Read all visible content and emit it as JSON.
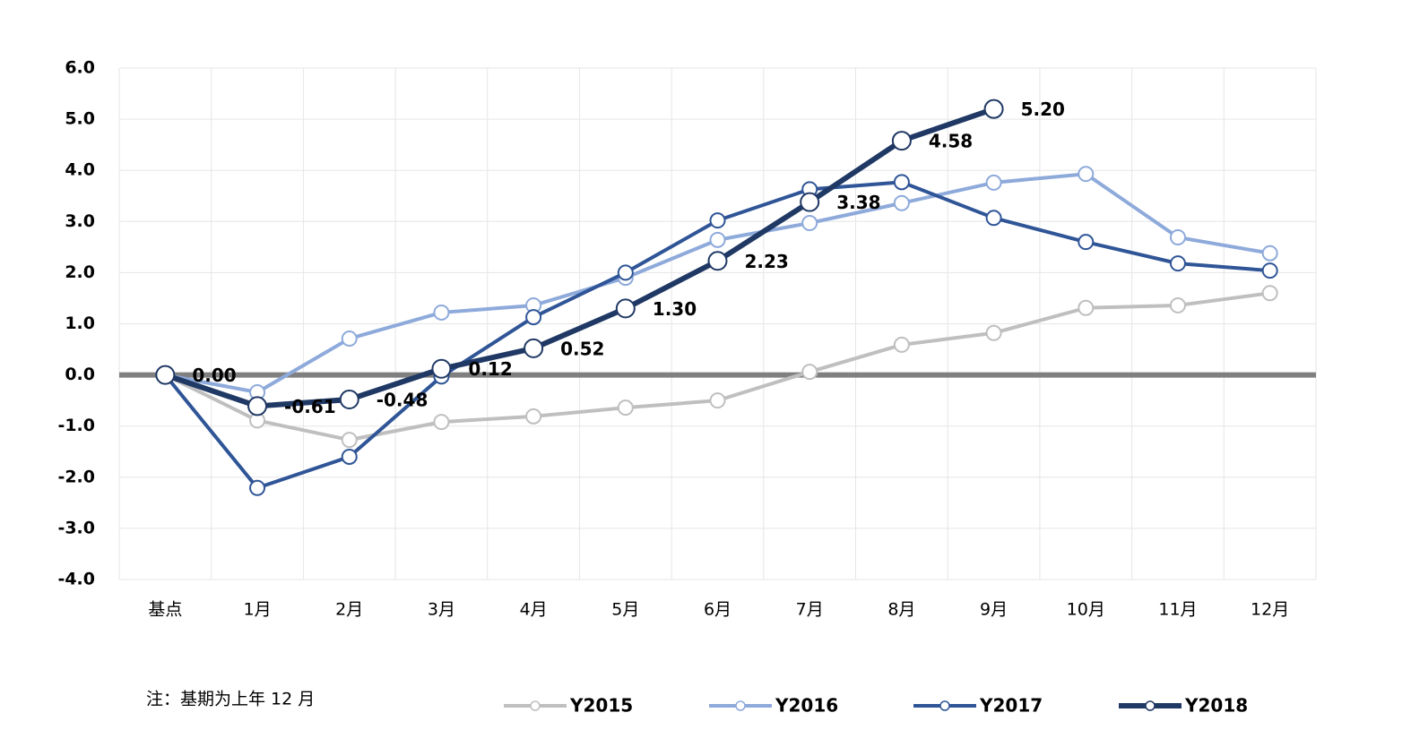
{
  "chart_data": {
    "type": "line",
    "note": "注：基期为上年 12 月",
    "categories": [
      "基点",
      "1月",
      "2月",
      "3月",
      "4月",
      "5月",
      "6月",
      "7月",
      "8月",
      "9月",
      "10月",
      "11月",
      "12月"
    ],
    "series": [
      {
        "name": "Y2015",
        "color": "#bfbfbf",
        "values": [
          0,
          -0.89,
          -1.27,
          -0.92,
          -0.81,
          -0.64,
          -0.5,
          0.06,
          0.59,
          0.82,
          1.31,
          1.36,
          1.6
        ]
      },
      {
        "name": "Y2016",
        "color": "#8eaadb",
        "values": [
          0,
          -0.34,
          0.71,
          1.22,
          1.36,
          1.9,
          2.64,
          2.97,
          3.36,
          3.76,
          3.93,
          2.69,
          2.38
        ]
      },
      {
        "name": "Y2017",
        "color": "#2f5597",
        "values": [
          0,
          -2.21,
          -1.6,
          -0.03,
          1.13,
          2.0,
          3.02,
          3.63,
          3.77,
          3.07,
          2.6,
          2.18,
          2.04
        ]
      },
      {
        "name": "Y2018",
        "color": "#1f3864",
        "values": [
          0,
          -0.61,
          -0.48,
          0.12,
          0.52,
          1.3,
          2.23,
          3.38,
          4.58,
          5.2,
          null,
          null,
          null
        ],
        "value_labels": [
          "0.00",
          "-0.61",
          "-0.48",
          "0.12",
          "0.52",
          "1.30",
          "2.23",
          "3.38",
          "4.58",
          "5.20",
          null,
          null,
          null
        ]
      }
    ],
    "ylim": [
      -4,
      6
    ],
    "yticks": [
      {
        "value": -4,
        "label": "-4.0"
      },
      {
        "value": -3,
        "label": "-3.0"
      },
      {
        "value": -2,
        "label": "-2.0"
      },
      {
        "value": -1,
        "label": "-1.0"
      },
      {
        "value": 0,
        "label": "0.0"
      },
      {
        "value": 1,
        "label": "1.0"
      },
      {
        "value": 2,
        "label": "2.0"
      },
      {
        "value": 3,
        "label": "3.0"
      },
      {
        "value": 4,
        "label": "4.0"
      },
      {
        "value": 5,
        "label": "5.0"
      },
      {
        "value": 6,
        "label": "6.0"
      }
    ],
    "grid": true
  }
}
